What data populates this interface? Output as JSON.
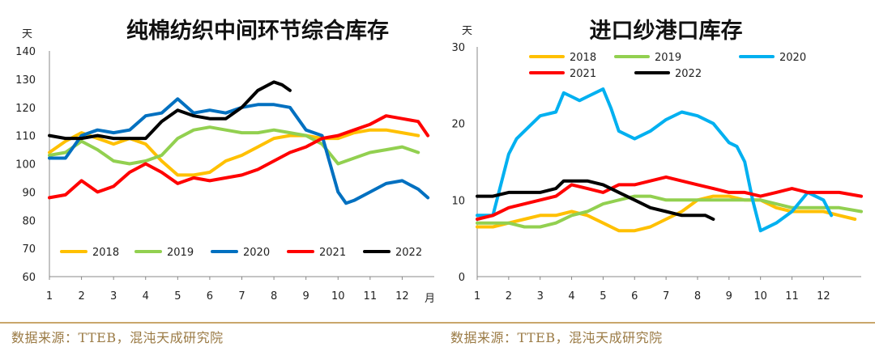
{
  "source_left": "数据来源：TTEB，混沌天成研究院",
  "source_right": "数据来源：TTEB，混沌天成研究院",
  "chart_data": [
    {
      "type": "line",
      "title": "纯棉纺织中间环节综合库存",
      "ylabel": "天",
      "xlabel": "月",
      "ylim": [
        60,
        140
      ],
      "yticks": [
        60,
        70,
        80,
        90,
        100,
        110,
        120,
        130,
        140
      ],
      "xlim": [
        1,
        13
      ],
      "xticks": [
        1,
        2,
        3,
        4,
        5,
        6,
        7,
        8,
        9,
        10,
        11,
        12
      ],
      "legend_position": "bottom",
      "legend_order": [
        "2018",
        "2019",
        "2020",
        "2021",
        "2022"
      ],
      "series": [
        {
          "name": "2018",
          "color": "#FFC000",
          "x": [
            1,
            1.5,
            2,
            2.5,
            3,
            3.5,
            4,
            4.5,
            5,
            5.5,
            6,
            6.5,
            7,
            7.5,
            8,
            8.5,
            9,
            9.5,
            10,
            10.5,
            11,
            11.5,
            12,
            12.5
          ],
          "y": [
            104,
            108,
            111,
            109,
            107,
            109,
            107,
            101,
            96,
            96,
            97,
            101,
            103,
            106,
            109,
            110,
            110,
            109,
            109,
            111,
            112,
            112,
            111,
            110
          ]
        },
        {
          "name": "2019",
          "color": "#92D050",
          "x": [
            1,
            1.5,
            2,
            2.5,
            3,
            3.5,
            4,
            4.5,
            5,
            5.5,
            6,
            6.5,
            7,
            7.5,
            8,
            8.5,
            9,
            9.5,
            10,
            10.5,
            11,
            11.5,
            12,
            12.5
          ],
          "y": [
            103,
            104,
            108,
            105,
            101,
            100,
            101,
            103,
            109,
            112,
            113,
            112,
            111,
            111,
            112,
            111,
            110,
            107,
            100,
            102,
            104,
            105,
            106,
            104
          ]
        },
        {
          "name": "2020",
          "color": "#0070C0",
          "x": [
            1,
            1.5,
            2,
            2.5,
            3,
            3.5,
            4,
            4.5,
            5,
            5.5,
            6,
            6.5,
            7,
            7.5,
            8,
            8.5,
            9,
            9.5,
            10,
            10.25,
            10.5,
            11,
            11.5,
            12,
            12.5,
            12.8
          ],
          "y": [
            102,
            102,
            110,
            112,
            111,
            112,
            117,
            118,
            123,
            118,
            119,
            118,
            120,
            121,
            121,
            120,
            112,
            110,
            90,
            86,
            87,
            90,
            93,
            94,
            91,
            88
          ]
        },
        {
          "name": "2021",
          "color": "#FF0000",
          "x": [
            1,
            1.5,
            2,
            2.5,
            3,
            3.5,
            4,
            4.5,
            5,
            5.5,
            6,
            6.5,
            7,
            7.5,
            8,
            8.5,
            9,
            9.5,
            10,
            10.5,
            11,
            11.5,
            12,
            12.5,
            12.8
          ],
          "y": [
            88,
            89,
            94,
            90,
            92,
            97,
            100,
            97,
            93,
            95,
            94,
            95,
            96,
            98,
            101,
            104,
            106,
            109,
            110,
            112,
            114,
            117,
            116,
            115,
            110
          ]
        },
        {
          "name": "2022",
          "color": "#000000",
          "x": [
            1,
            1.5,
            2,
            2.5,
            3,
            3.5,
            4,
            4.5,
            5,
            5.5,
            6,
            6.5,
            7,
            7.5,
            8,
            8.25,
            8.5
          ],
          "y": [
            110,
            109,
            109,
            110,
            109,
            109,
            109,
            115,
            119,
            117,
            116,
            116,
            120,
            126,
            129,
            128,
            126
          ]
        }
      ]
    },
    {
      "type": "line",
      "title": "进口纱港口库存",
      "ylabel": "天",
      "xlabel": "",
      "ylim": [
        0,
        30
      ],
      "yticks": [
        0,
        10,
        20,
        30
      ],
      "xlim": [
        1,
        13.2
      ],
      "xticks": [
        1,
        2,
        3,
        4,
        5,
        6,
        7,
        8,
        9,
        10,
        11,
        12
      ],
      "legend_position": "top",
      "legend_order": [
        "2018",
        "2019",
        "2020",
        "2021",
        "2022"
      ],
      "series": [
        {
          "name": "2018",
          "color": "#FFC000",
          "x": [
            1,
            1.5,
            2,
            2.5,
            3,
            3.5,
            4,
            4.5,
            5,
            5.5,
            6,
            6.5,
            7,
            7.5,
            8,
            8.5,
            9,
            9.5,
            10,
            10.5,
            11,
            11.5,
            12,
            12.5,
            13
          ],
          "y": [
            6.5,
            6.5,
            7,
            7.5,
            8,
            8,
            8.5,
            8,
            7,
            6,
            6,
            6.5,
            7.5,
            8.5,
            10,
            10.5,
            10.5,
            10,
            10,
            9,
            8.5,
            8.5,
            8.5,
            8,
            7.5
          ]
        },
        {
          "name": "2019",
          "color": "#92D050",
          "x": [
            1,
            1.5,
            2,
            2.5,
            3,
            3.5,
            4,
            4.5,
            5,
            5.5,
            6,
            6.5,
            7,
            7.5,
            8,
            8.5,
            9,
            9.5,
            10,
            10.5,
            11,
            11.5,
            12,
            12.5,
            13.2
          ],
          "y": [
            7,
            7,
            7,
            6.5,
            6.5,
            7,
            8,
            8.5,
            9.5,
            10,
            10.5,
            10.5,
            10,
            10,
            10,
            10,
            10,
            10,
            10,
            9.5,
            9,
            9,
            9,
            9,
            8.5
          ]
        },
        {
          "name": "2020",
          "color": "#00B0F0",
          "x": [
            1,
            1.5,
            2,
            2.25,
            2.5,
            3,
            3.5,
            3.75,
            4,
            4.25,
            4.5,
            5,
            5.25,
            5.5,
            6,
            6.5,
            7,
            7.5,
            8,
            8.5,
            9,
            9.25,
            9.5,
            9.75,
            10,
            10.5,
            11,
            11.5,
            12,
            12.25
          ],
          "y": [
            8,
            8,
            16,
            18,
            19,
            21,
            21.5,
            24,
            23.5,
            23,
            23.5,
            24.5,
            22,
            19,
            18,
            19,
            20.5,
            21.5,
            21,
            20,
            17.5,
            17,
            15,
            10,
            6,
            7,
            8.5,
            11,
            10,
            8
          ]
        },
        {
          "name": "2021",
          "color": "#FF0000",
          "x": [
            1,
            1.5,
            2,
            2.5,
            3,
            3.5,
            4,
            4.5,
            5,
            5.5,
            6,
            6.5,
            7,
            7.5,
            8,
            8.5,
            9,
            9.5,
            10,
            10.5,
            11,
            11.5,
            12,
            12.5,
            13.2
          ],
          "y": [
            7.5,
            8,
            9,
            9.5,
            10,
            10.5,
            12,
            11.5,
            11,
            12,
            12,
            12.5,
            13,
            12.5,
            12,
            11.5,
            11,
            11,
            10.5,
            11,
            11.5,
            11,
            11,
            11,
            10.5
          ]
        },
        {
          "name": "2022",
          "color": "#000000",
          "x": [
            1,
            1.5,
            2,
            2.5,
            3,
            3.5,
            3.75,
            4,
            4.5,
            5,
            5.5,
            6,
            6.5,
            7,
            7.5,
            8,
            8.25,
            8.5
          ],
          "y": [
            10.5,
            10.5,
            11,
            11,
            11,
            11.5,
            12.5,
            12.5,
            12.5,
            12,
            11,
            10,
            9,
            8.5,
            8,
            8,
            8,
            7.5
          ]
        }
      ]
    }
  ]
}
